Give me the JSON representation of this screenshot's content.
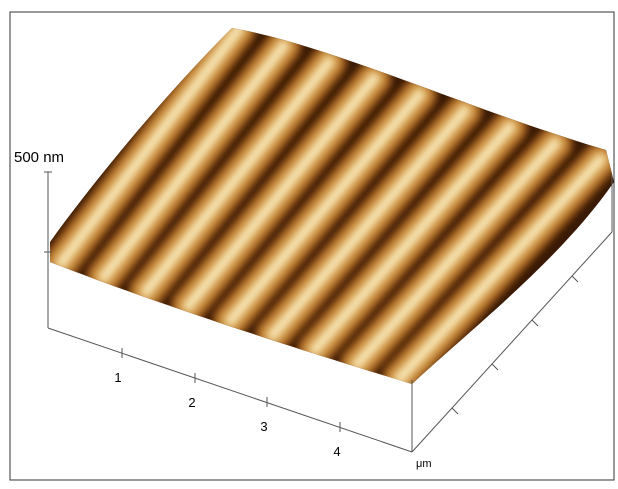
{
  "z_scale_label": "500 nm",
  "x_tick_labels": [
    "1",
    "2",
    "3",
    "4"
  ],
  "unit_label": "μm"
}
